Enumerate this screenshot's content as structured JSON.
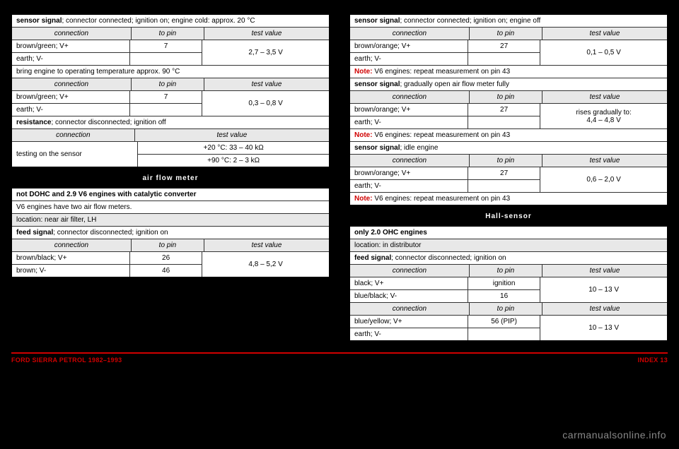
{
  "left": {
    "block1": {
      "header": "<b>sensor signal</b>; connector connected; ignition on; engine cold: approx. 20 °C",
      "cols": [
        "connection",
        "to pin",
        "test value"
      ],
      "rows": [
        {
          "c1": "brown/green; V+",
          "c2": "7",
          "c3merge": "2,7 – 3,5 V"
        },
        {
          "c1": "earth; V-",
          "c2": ""
        }
      ],
      "note": "bring engine to operating temperature approx. 90 °C",
      "cols2": [
        "connection",
        "to pin",
        "test value"
      ],
      "rows2": [
        {
          "c1": "brown/green; V+",
          "c2": "7",
          "c3merge": "0,3 – 0,8 V"
        },
        {
          "c1": "earth; V-",
          "c2": ""
        }
      ],
      "res_header": "<b>resistance</b>; connector disconnected; ignition off",
      "res_cols": [
        "connection",
        "test value"
      ],
      "res_r1_c1": "testing on the sensor",
      "res_r1_c2": "+20 °C: 33 – 40 kΩ",
      "res_r2_c2": "+90 °C: 2 – 3 kΩ"
    },
    "title": "air flow meter",
    "block2": {
      "l1": "<b>not DOHC and 2.9 V6 engines with catalytic converter</b>",
      "l2": "V6 engines have two air flow meters.",
      "l3": "location: near air filter, LH",
      "l4": "<b>feed signal</b>; connector disconnected; ignition on",
      "cols": [
        "connection",
        "to pin",
        "test value"
      ],
      "rows": [
        {
          "c1": "brown/black; V+",
          "c2": "26",
          "c3merge": "4,8 – 5,2 V"
        },
        {
          "c1": "brown; V-",
          "c2": "46"
        }
      ]
    }
  },
  "right": {
    "block1": {
      "l1": "<b>sensor signal</b>; connector connected; ignition on; engine off",
      "cols": [
        "connection",
        "to pin",
        "test value"
      ],
      "r1": {
        "c1": "brown/orange; V+",
        "c2": "27",
        "c3merge": "0,1 – 0,5 V"
      },
      "r2": {
        "c1": "earth; V-",
        "c2": ""
      },
      "note1": "V6 engines: repeat measurement on pin 43",
      "l2": "<b>sensor signal</b>; gradually open air flow meter fully",
      "r3": {
        "c1": "brown/orange; V+",
        "c2": "27",
        "c3merge": "rises gradually to:<br>4,4 – 4,8 V"
      },
      "r4": {
        "c1": "earth; V-",
        "c2": ""
      },
      "note2": "V6 engines: repeat measurement on pin 43",
      "l3": "<b>sensor signal</b>; idle engine",
      "r5": {
        "c1": "brown/orange; V+",
        "c2": "27",
        "c3merge": "0,6 – 2,0 V"
      },
      "r6": {
        "c1": "earth; V-",
        "c2": ""
      },
      "note3": "V6 engines: repeat measurement on pin 43"
    },
    "title": "Hall-sensor",
    "block2": {
      "l1": "<b>only 2.0 OHC engines</b>",
      "l2": "location: in distributor",
      "l3": "<b>feed signal</b>; connector disconnected; ignition on",
      "cols": [
        "connection",
        "to pin",
        "test value"
      ],
      "r1": {
        "c1": "black; V+",
        "c2": "ignition",
        "c3merge": "10 – 13 V"
      },
      "r2": {
        "c1": "blue/black; V-",
        "c2": "16"
      },
      "r3": {
        "c1": "blue/yellow; V+",
        "c2": "56 (PIP)",
        "c3merge": "10 – 13 V"
      },
      "r4": {
        "c1": "earth; V-",
        "c2": ""
      }
    }
  },
  "footer": {
    "left": "FORD SIERRA PETROL 1982–1993",
    "right": "INDEX   13"
  },
  "watermark": "carmanualsonline.info"
}
